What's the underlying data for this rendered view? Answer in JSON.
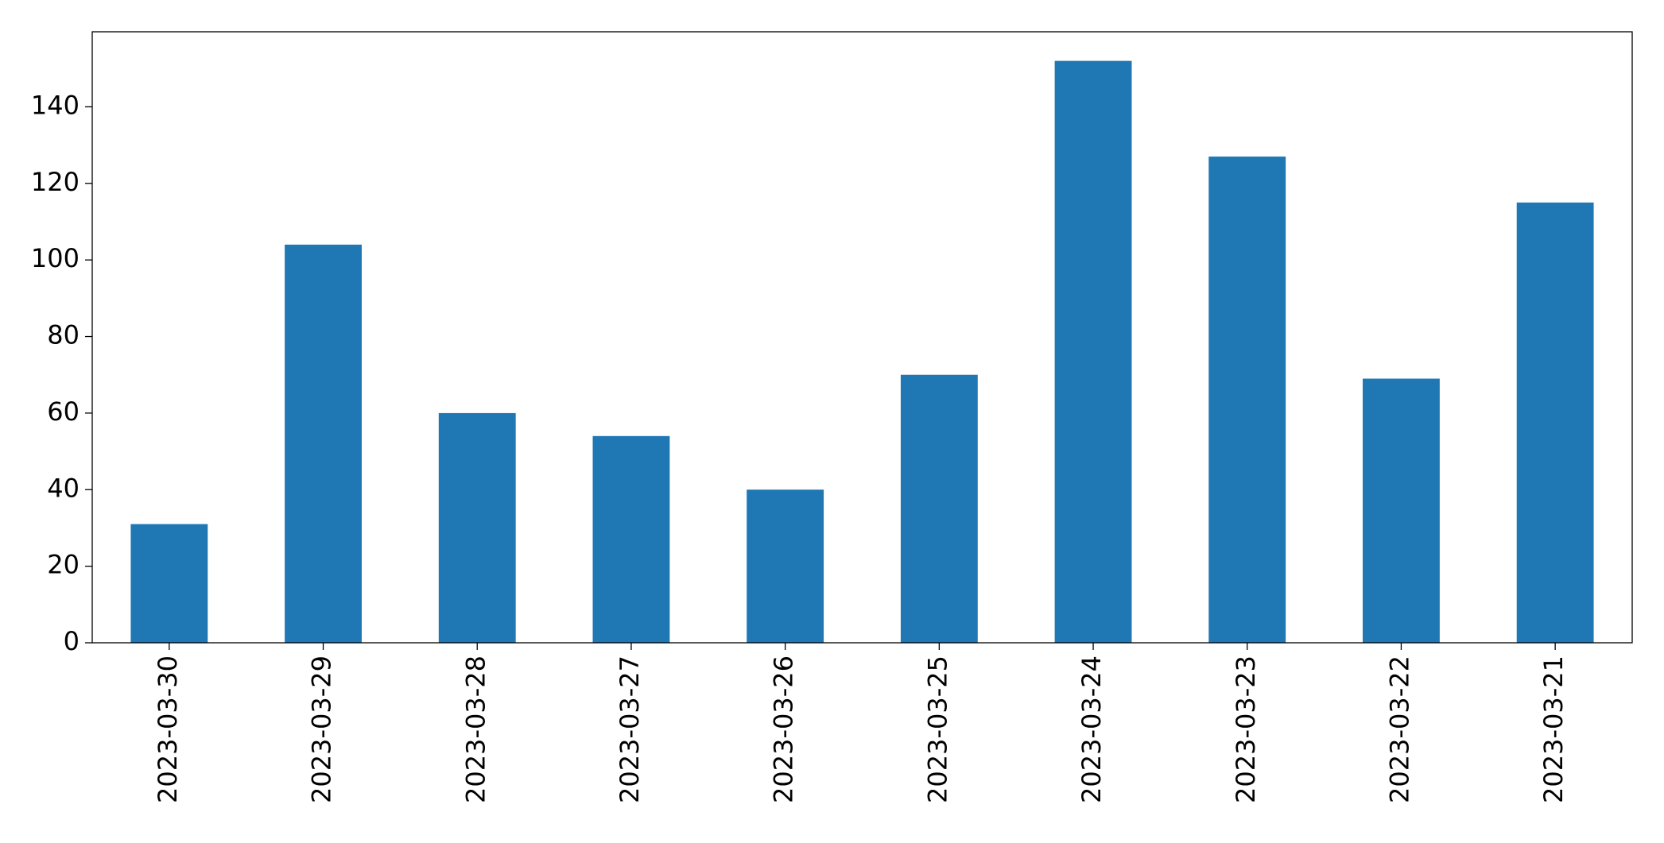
{
  "chart_data": {
    "type": "bar",
    "categories": [
      "2023-03-30",
      "2023-03-29",
      "2023-03-28",
      "2023-03-27",
      "2023-03-26",
      "2023-03-25",
      "2023-03-24",
      "2023-03-23",
      "2023-03-22",
      "2023-03-21"
    ],
    "values": [
      31,
      104,
      60,
      54,
      40,
      70,
      152,
      127,
      69,
      115
    ],
    "color": "#1f77b4",
    "ylim": [
      0,
      159.6
    ],
    "yticks": [
      0,
      20,
      40,
      60,
      80,
      100,
      120,
      140
    ],
    "grid": false
  }
}
